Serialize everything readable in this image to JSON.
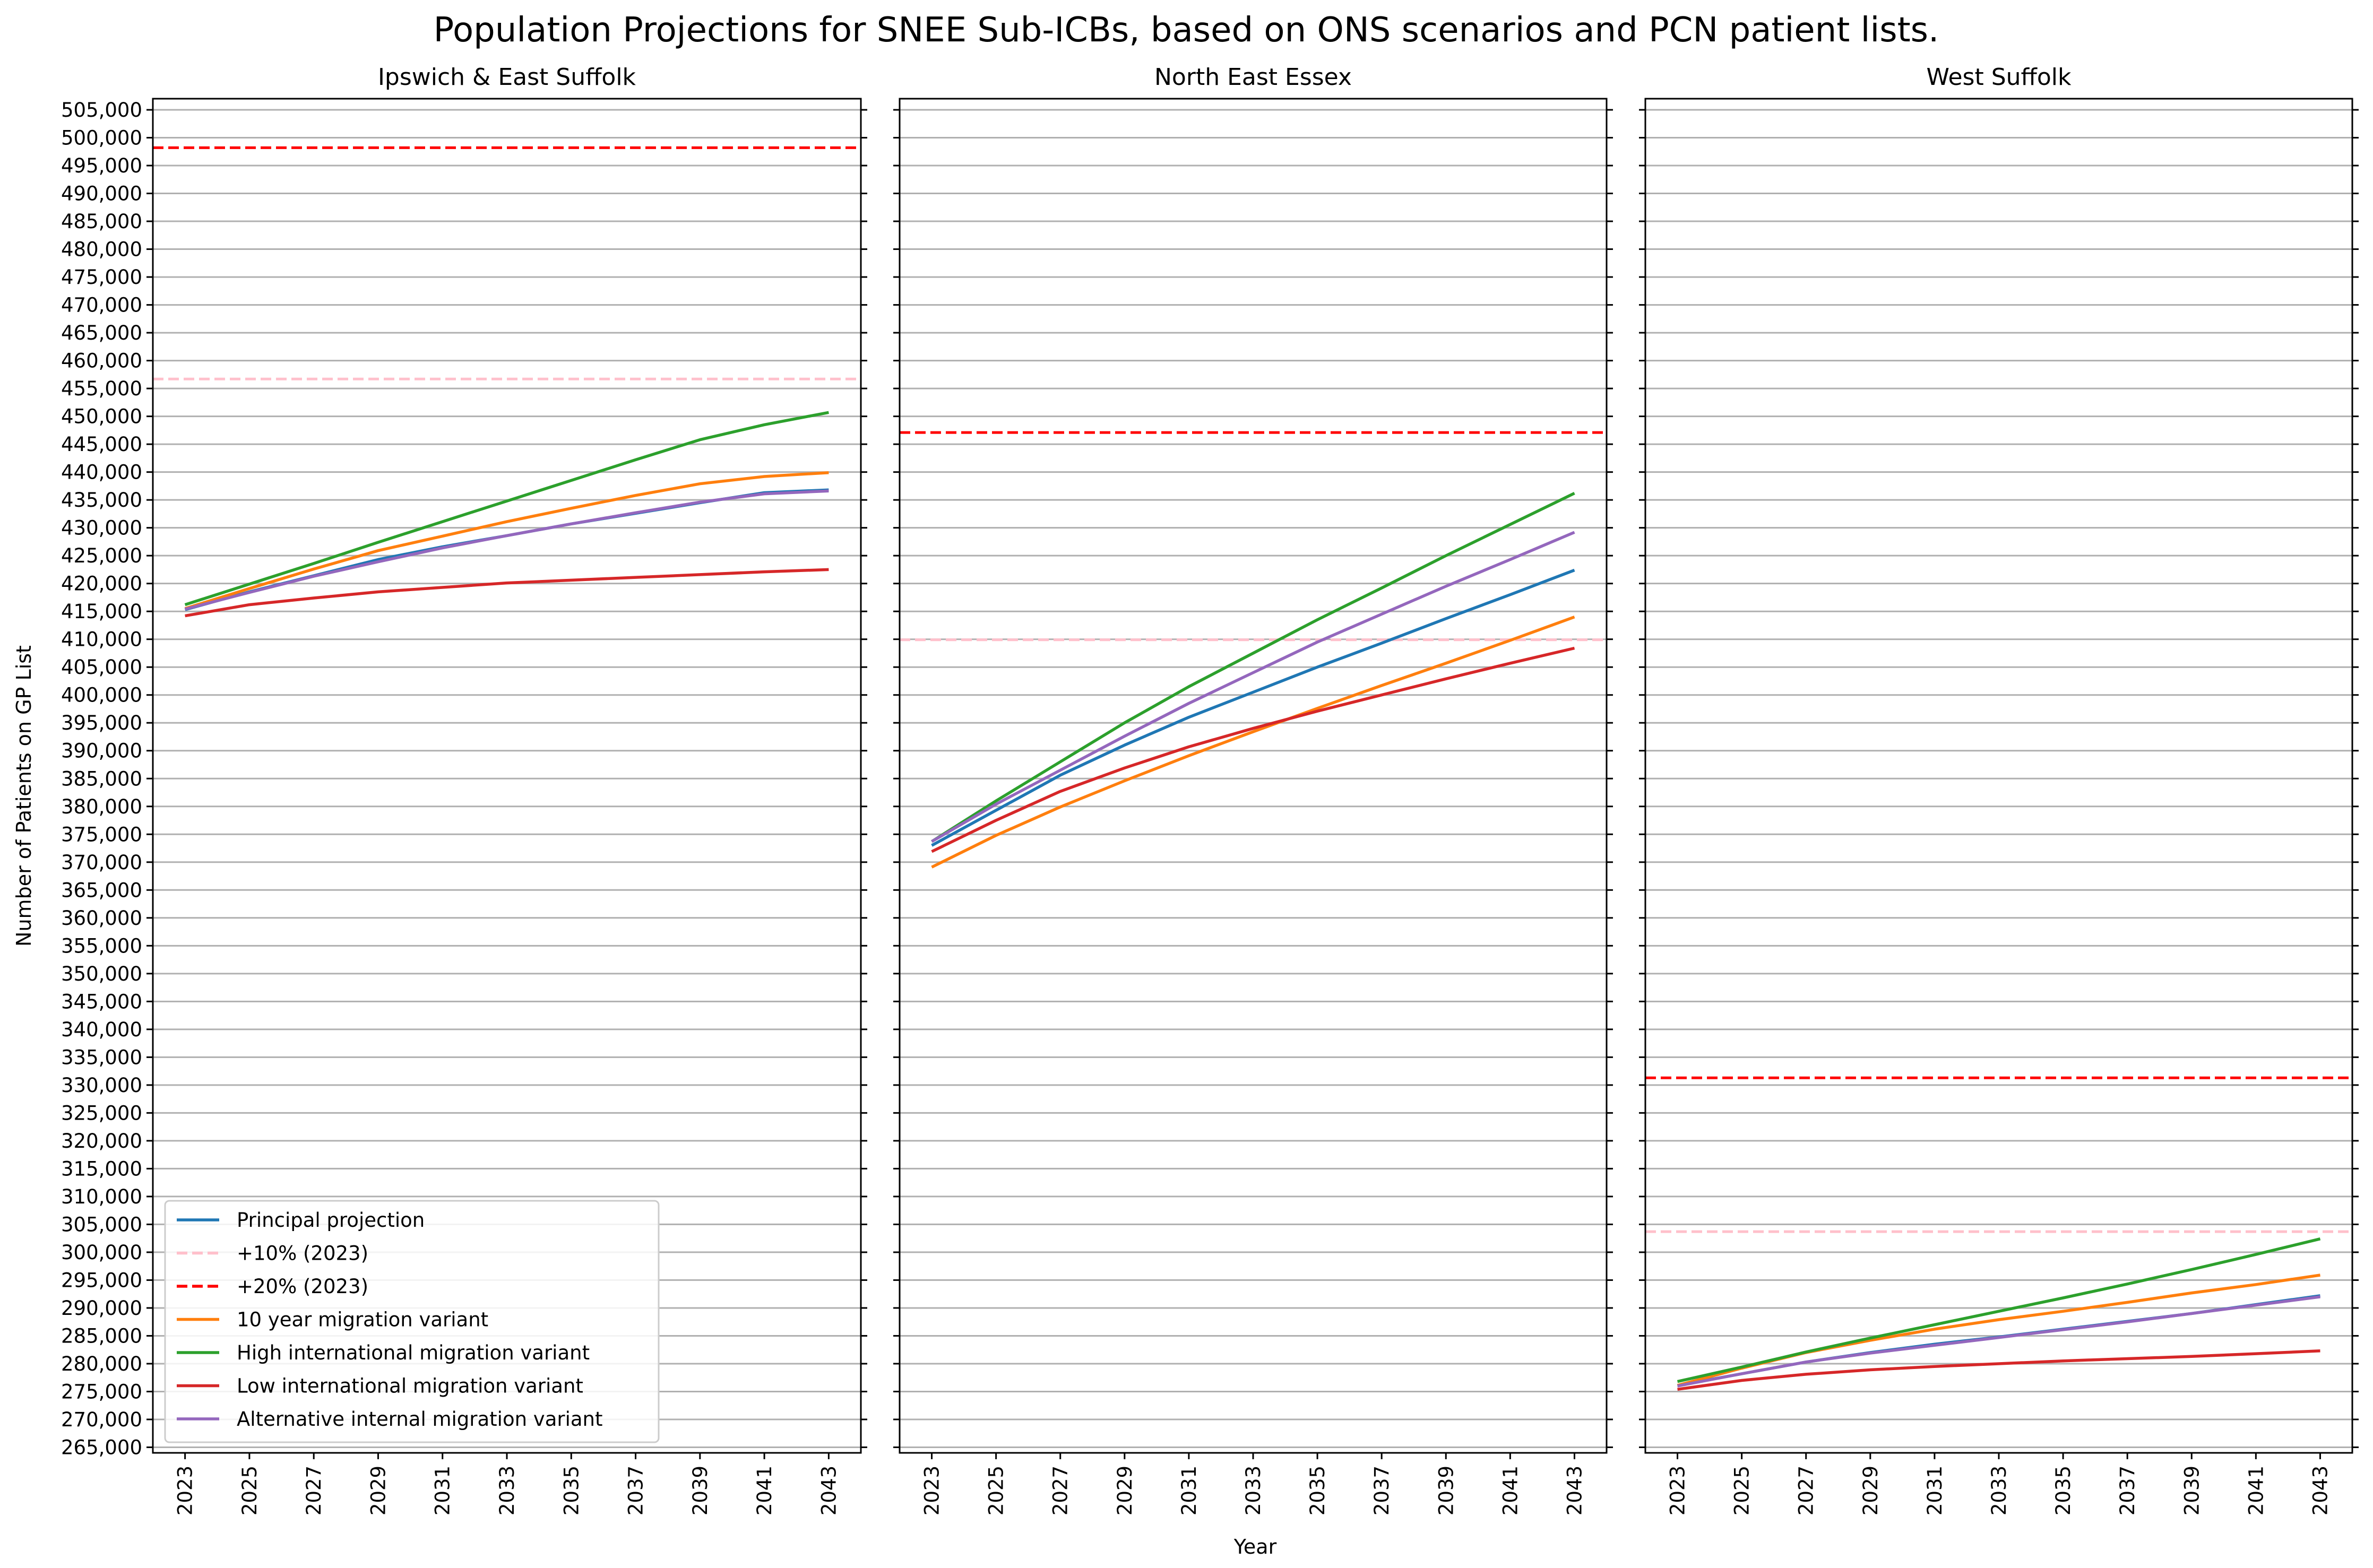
{
  "figure": {
    "suptitle": "Population Projections for SNEE Sub-ICBs, based on ONS scenarios and PCN patient lists.",
    "xlabel": "Year",
    "ylabel": "Number of Patients on GP List"
  },
  "legend": {
    "placement": "lower-left of first panel",
    "entries": [
      {
        "label": "Principal projection",
        "color": "#1f77b4",
        "dash": "solid"
      },
      {
        "label": "+10% (2023)",
        "color": "#ffc0cb",
        "dash": "dashed"
      },
      {
        "label": "+20% (2023)",
        "color": "#ff0000",
        "dash": "dashed"
      },
      {
        "label": "10 year migration variant",
        "color": "#ff7f0e",
        "dash": "solid"
      },
      {
        "label": "High international migration variant",
        "color": "#2ca02c",
        "dash": "solid"
      },
      {
        "label": "Low international migration variant",
        "color": "#d62728",
        "dash": "solid"
      },
      {
        "label": "Alternative internal migration variant",
        "color": "#9467bd",
        "dash": "solid"
      }
    ]
  },
  "chart_data": [
    {
      "type": "line",
      "title": "Ipswich & East Suffolk",
      "xlabel": "",
      "ylabel": "Number of Patients on GP List",
      "xlim": [
        2022,
        2044
      ],
      "ylim": [
        264000,
        507000
      ],
      "grid": "horizontal",
      "x": [
        2023,
        2025,
        2027,
        2029,
        2031,
        2033,
        2035,
        2037,
        2039,
        2041,
        2043
      ],
      "hlines": [
        {
          "name": "+10% (2023)",
          "y": 456700,
          "color": "#ffc0cb"
        },
        {
          "name": "+20% (2023)",
          "y": 498200,
          "color": "#ff0000"
        }
      ],
      "series": [
        {
          "name": "Principal projection",
          "color": "#1f77b4",
          "values": [
            415300,
            418500,
            421400,
            424300,
            426600,
            428600,
            430700,
            432600,
            434500,
            436300,
            436800
          ]
        },
        {
          "name": "10 year migration variant",
          "color": "#ff7f0e",
          "values": [
            415500,
            419100,
            422600,
            425900,
            428500,
            431100,
            433500,
            435800,
            437900,
            439200,
            439900
          ]
        },
        {
          "name": "High international migration variant",
          "color": "#2ca02c",
          "values": [
            416200,
            419900,
            423600,
            427400,
            431100,
            434800,
            438500,
            442200,
            445800,
            448500,
            450700
          ]
        },
        {
          "name": "Low international migration variant",
          "color": "#d62728",
          "values": [
            414200,
            416200,
            417400,
            418500,
            419300,
            420100,
            420600,
            421100,
            421600,
            422100,
            422500
          ]
        },
        {
          "name": "Alternative internal migration variant",
          "color": "#9467bd",
          "values": [
            415400,
            418400,
            421300,
            423900,
            426400,
            428600,
            430700,
            432700,
            434600,
            436100,
            436600
          ]
        }
      ]
    },
    {
      "type": "line",
      "title": "North East Essex",
      "xlabel": "Year",
      "ylabel": "",
      "xlim": [
        2022,
        2044
      ],
      "ylim": [
        264000,
        507000
      ],
      "grid": "horizontal",
      "x": [
        2023,
        2025,
        2027,
        2029,
        2031,
        2033,
        2035,
        2037,
        2039,
        2041,
        2043
      ],
      "hlines": [
        {
          "name": "+10% (2023)",
          "y": 409900,
          "color": "#ffc0cb"
        },
        {
          "name": "+20% (2023)",
          "y": 447100,
          "color": "#ff0000"
        }
      ],
      "series": [
        {
          "name": "Principal projection",
          "color": "#1f77b4",
          "values": [
            373000,
            379300,
            385600,
            391000,
            396000,
            400500,
            405000,
            409300,
            413700,
            418000,
            422400
          ]
        },
        {
          "name": "10 year migration variant",
          "color": "#ff7f0e",
          "values": [
            369100,
            374800,
            379900,
            384600,
            389100,
            393400,
            397600,
            401700,
            405700,
            409800,
            414000
          ]
        },
        {
          "name": "High international migration variant",
          "color": "#2ca02c",
          "values": [
            373700,
            381000,
            388000,
            395000,
            401500,
            407500,
            413500,
            419200,
            425000,
            430600,
            436200
          ]
        },
        {
          "name": "Low international migration variant",
          "color": "#d62728",
          "values": [
            371900,
            377500,
            382700,
            386900,
            390700,
            394000,
            397100,
            400000,
            402900,
            405700,
            408400
          ]
        },
        {
          "name": "Alternative internal migration variant",
          "color": "#9467bd",
          "values": [
            373700,
            380400,
            386500,
            392600,
            398500,
            404000,
            409500,
            414500,
            419500,
            424300,
            429200
          ]
        }
      ]
    },
    {
      "type": "line",
      "title": "West Suffolk",
      "xlabel": "",
      "ylabel": "",
      "xlim": [
        2022,
        2044
      ],
      "ylim": [
        264000,
        507000
      ],
      "grid": "horizontal",
      "x": [
        2023,
        2025,
        2027,
        2029,
        2031,
        2033,
        2035,
        2037,
        2039,
        2041,
        2043
      ],
      "hlines": [
        {
          "name": "+10% (2023)",
          "y": 303700,
          "color": "#ffc0cb"
        },
        {
          "name": "+20% (2023)",
          "y": 331300,
          "color": "#ff0000"
        }
      ],
      "series": [
        {
          "name": "Principal projection",
          "color": "#1f77b4",
          "values": [
            276100,
            278200,
            280300,
            282000,
            283500,
            284800,
            286200,
            287600,
            289000,
            290600,
            292200
          ]
        },
        {
          "name": "10 year migration variant",
          "color": "#ff7f0e",
          "values": [
            276100,
            279200,
            282000,
            284200,
            286200,
            287900,
            289400,
            291000,
            292700,
            294200,
            295900
          ]
        },
        {
          "name": "High international migration variant",
          "color": "#2ca02c",
          "values": [
            276800,
            279400,
            282100,
            284600,
            287000,
            289400,
            291800,
            294300,
            296900,
            299600,
            302400
          ]
        },
        {
          "name": "Low international migration variant",
          "color": "#d62728",
          "values": [
            275400,
            277000,
            278100,
            278900,
            279500,
            280000,
            280500,
            280900,
            281300,
            281800,
            282300
          ]
        },
        {
          "name": "Alternative internal migration variant",
          "color": "#9467bd",
          "values": [
            276000,
            278200,
            280300,
            281900,
            283300,
            284700,
            286100,
            287500,
            289000,
            290500,
            292000
          ]
        }
      ]
    }
  ]
}
